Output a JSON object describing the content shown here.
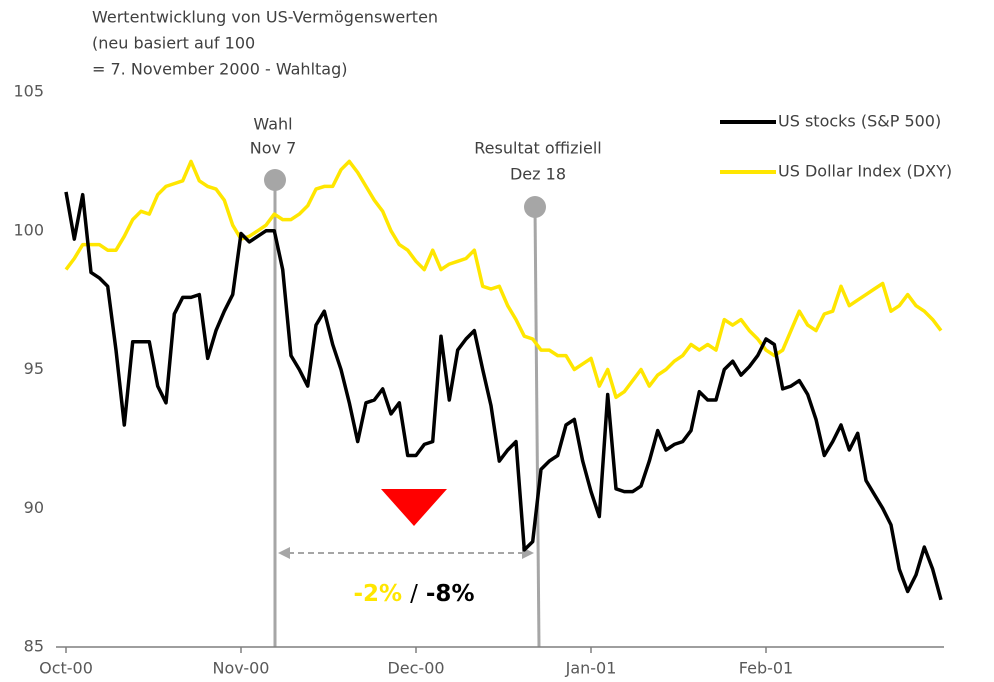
{
  "chart_data": {
    "type": "line",
    "title": [
      "Wertentwicklung von US-Vermögenswerten",
      "(neu basiert auf 100",
      "= 7. November 2000 - Wahltag)"
    ],
    "categories": [
      "Oct-00",
      null,
      null,
      null,
      null,
      null,
      null,
      null,
      null,
      null,
      null,
      null,
      null,
      null,
      null,
      null,
      null,
      null,
      null,
      null,
      null,
      "Nov-00",
      null,
      null,
      null,
      null,
      null,
      null,
      null,
      null,
      null,
      null,
      null,
      null,
      null,
      null,
      null,
      null,
      null,
      null,
      null,
      null,
      "Dec-00",
      null,
      null,
      null,
      null,
      null,
      null,
      null,
      null,
      null,
      null,
      null,
      null,
      null,
      null,
      null,
      null,
      null,
      null,
      null,
      null,
      "Jan-01",
      null,
      null,
      null,
      null,
      null,
      null,
      null,
      null,
      null,
      null,
      null,
      null,
      null,
      null,
      null,
      null,
      null,
      null,
      null,
      null,
      "Feb-01",
      null,
      null,
      null,
      null,
      null,
      null,
      null,
      null,
      null,
      null,
      null,
      null,
      null,
      null,
      null,
      null,
      null,
      null,
      null,
      null,
      null
    ],
    "series": [
      {
        "name": "US stocks (S&P 500)",
        "color": "#000000",
        "values": [
          101.4,
          99.7,
          101.3,
          98.5,
          98.3,
          98.0,
          95.7,
          93.0,
          96.0,
          96.0,
          96.0,
          94.4,
          93.8,
          97.0,
          97.6,
          97.6,
          97.7,
          95.4,
          96.4,
          97.1,
          97.7,
          99.9,
          99.6,
          99.8,
          100.0,
          100.0,
          98.6,
          95.5,
          95.0,
          94.4,
          96.6,
          97.1,
          95.9,
          95.0,
          93.8,
          92.4,
          93.8,
          93.9,
          94.3,
          93.4,
          93.8,
          91.9,
          91.9,
          92.3,
          92.4,
          96.2,
          93.9,
          95.7,
          96.1,
          96.4,
          95.0,
          93.7,
          91.7,
          92.1,
          92.4,
          88.5,
          88.8,
          91.4,
          91.7,
          91.9,
          93.0,
          93.2,
          91.7,
          90.6,
          89.7,
          94.1,
          90.7,
          90.6,
          90.6,
          90.8,
          91.7,
          92.8,
          92.1,
          92.3,
          92.4,
          92.8,
          94.2,
          93.9,
          93.9,
          95.0,
          95.3,
          94.8,
          95.1,
          95.5,
          96.1,
          95.9,
          94.3,
          94.4,
          94.6,
          94.1,
          93.2,
          91.9,
          92.4,
          93.0,
          92.1,
          92.7,
          91.0,
          90.5,
          90.0,
          89.4,
          87.8,
          87.0,
          87.6,
          88.6,
          87.8,
          86.7
        ]
      },
      {
        "name": "US Dollar Index (DXY)",
        "color": "#ffe600",
        "values": [
          98.6,
          99.0,
          99.5,
          99.5,
          99.5,
          99.3,
          99.3,
          99.8,
          100.4,
          100.7,
          100.6,
          101.3,
          101.6,
          101.7,
          101.8,
          102.5,
          101.8,
          101.6,
          101.5,
          101.1,
          100.2,
          99.7,
          99.8,
          100.0,
          100.2,
          100.6,
          100.4,
          100.4,
          100.6,
          100.9,
          101.5,
          101.6,
          101.6,
          102.2,
          102.5,
          102.1,
          101.6,
          101.1,
          100.7,
          100.0,
          99.5,
          99.3,
          98.9,
          98.6,
          99.3,
          98.6,
          98.8,
          98.9,
          99.0,
          99.3,
          98.0,
          97.9,
          98.0,
          97.3,
          96.8,
          96.2,
          96.1,
          95.7,
          95.7,
          95.5,
          95.5,
          95.0,
          95.2,
          95.4,
          94.4,
          95.0,
          94.0,
          94.2,
          94.6,
          95.0,
          94.4,
          94.8,
          95.0,
          95.3,
          95.5,
          95.9,
          95.7,
          95.9,
          95.7,
          96.8,
          96.6,
          96.8,
          96.4,
          96.1,
          95.7,
          95.5,
          95.7,
          96.4,
          97.1,
          96.6,
          96.4,
          97.0,
          97.1,
          98.0,
          97.3,
          97.5,
          97.7,
          97.9,
          98.1,
          97.1,
          97.3,
          97.7,
          97.3,
          97.1,
          96.8,
          96.4
        ]
      }
    ],
    "ylim": [
      85,
      105
    ],
    "yticks": [
      85,
      90,
      95,
      100,
      105
    ],
    "annotations": [
      [
        "Wahl",
        "Nov 7"
      ],
      [
        "Resultat offiziell",
        "Dez 18"
      ]
    ],
    "change_labels": [
      "-2%",
      "/",
      "-8%"
    ]
  }
}
